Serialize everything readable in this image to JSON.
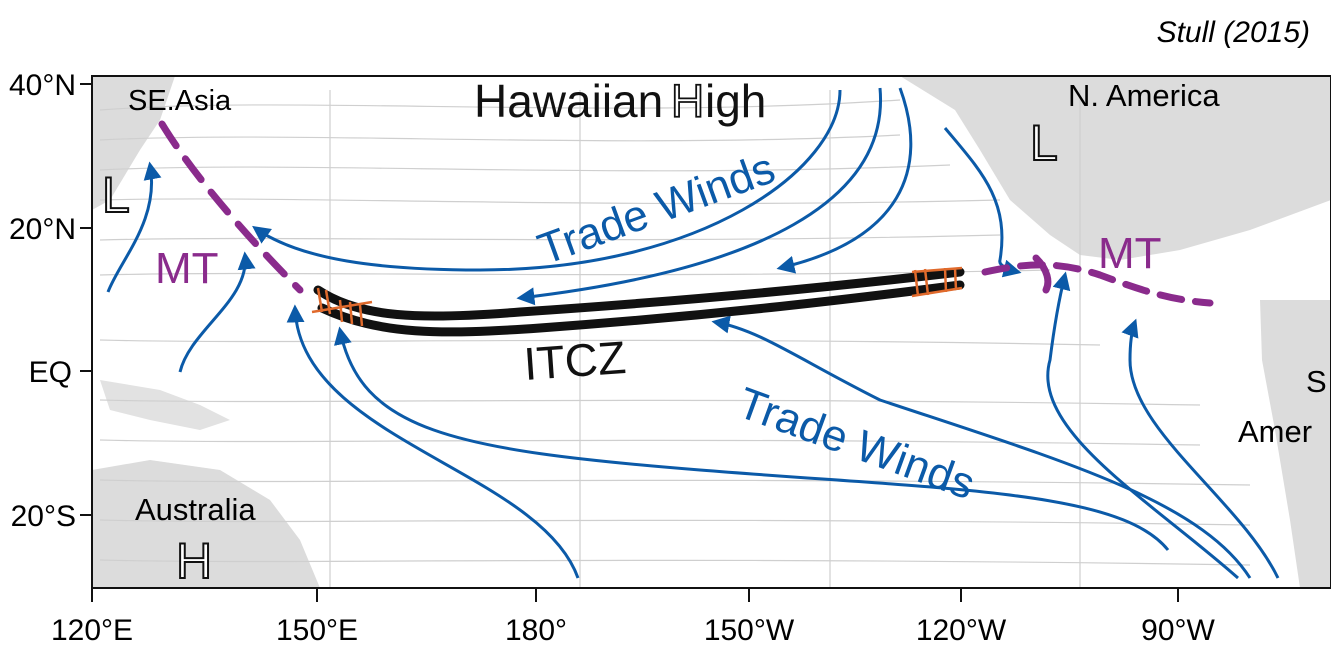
{
  "citation": "Stull (2015)",
  "axes": {
    "y_ticks": [
      "40°N",
      "20°N",
      "EQ",
      "20°S"
    ],
    "x_ticks": [
      "120°E",
      "150°E",
      "180°",
      "150°W",
      "120°W",
      "90°W"
    ]
  },
  "regions": {
    "se_asia": "SE.Asia",
    "n_america": "N. America",
    "australia": "Australia",
    "s_america_1": "S",
    "s_america_2": "Amer"
  },
  "pressure_systems": {
    "hawaiian_high_1": "Hawaiian ",
    "hawaiian_high_H": "H",
    "hawaiian_high_2": "igh",
    "low_w": "L",
    "low_ne": "L",
    "high_s": "H"
  },
  "features": {
    "mt_west": "MT",
    "mt_east": "MT",
    "itcz": "ITCZ",
    "trade_winds_north": "Trade Winds",
    "trade_winds_south": "Trade Winds"
  },
  "colors": {
    "wind_arrows": "#0b5aa8",
    "monsoon_trough": "#8a2b8c",
    "itcz": "#111111",
    "itcz_ends": "#e06a2c",
    "land": "#dcdcdc",
    "ocean": "#ffffff"
  }
}
